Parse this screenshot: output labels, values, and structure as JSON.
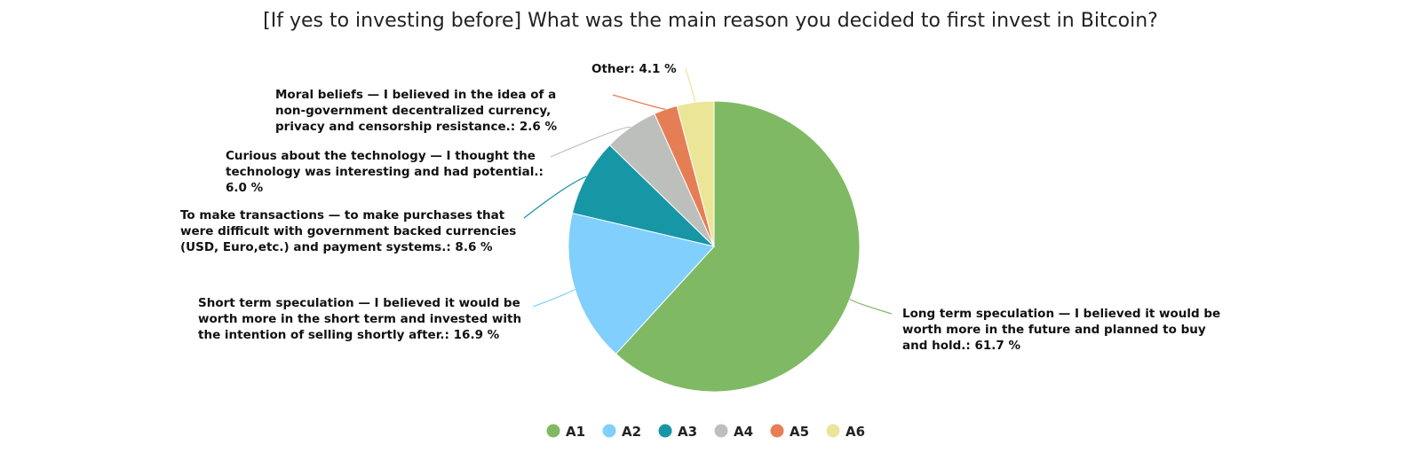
{
  "chart_data": {
    "type": "pie",
    "title": "[If yes to investing before] What was the main reason you decided to first invest in Bitcoin?",
    "slices": [
      {
        "key": "A1",
        "label": "Long term speculation — I believed it would be worth more in the future and planned to buy and hold.",
        "value": 61.7,
        "display": ": 61.7 %",
        "color": "#80b963"
      },
      {
        "key": "A2",
        "label": "Short term speculation — I believed it would be worth more in the short term and invested with the intention of selling shortly after.",
        "value": 16.9,
        "display": ": 16.9 %",
        "color": "#80cffc"
      },
      {
        "key": "A3",
        "label": "To make transactions — to make purchases that were difficult with government backed currencies (USD, Euro,etc.) and payment systems.",
        "value": 8.6,
        "display": ": 8.6 %",
        "color": "#1797a6"
      },
      {
        "key": "A4",
        "label": "Curious about the technology — I thought the technology was interesting and had potential.",
        "value": 6.0,
        "display": ": 6.0 %",
        "color": "#bdbfbd"
      },
      {
        "key": "A5",
        "label": "Moral beliefs — I believed in the idea of a non-government decentralized currency, privacy and censorship resistance.",
        "value": 2.6,
        "display": ": 2.6 %",
        "color": "#e67e55"
      },
      {
        "key": "A6",
        "label": "Other",
        "value": 4.1,
        "display": ": 4.1 %",
        "color": "#ebe597"
      }
    ],
    "legend": {
      "position": "bottom",
      "items": [
        "A1",
        "A2",
        "A3",
        "A4",
        "A5",
        "A6"
      ]
    }
  }
}
